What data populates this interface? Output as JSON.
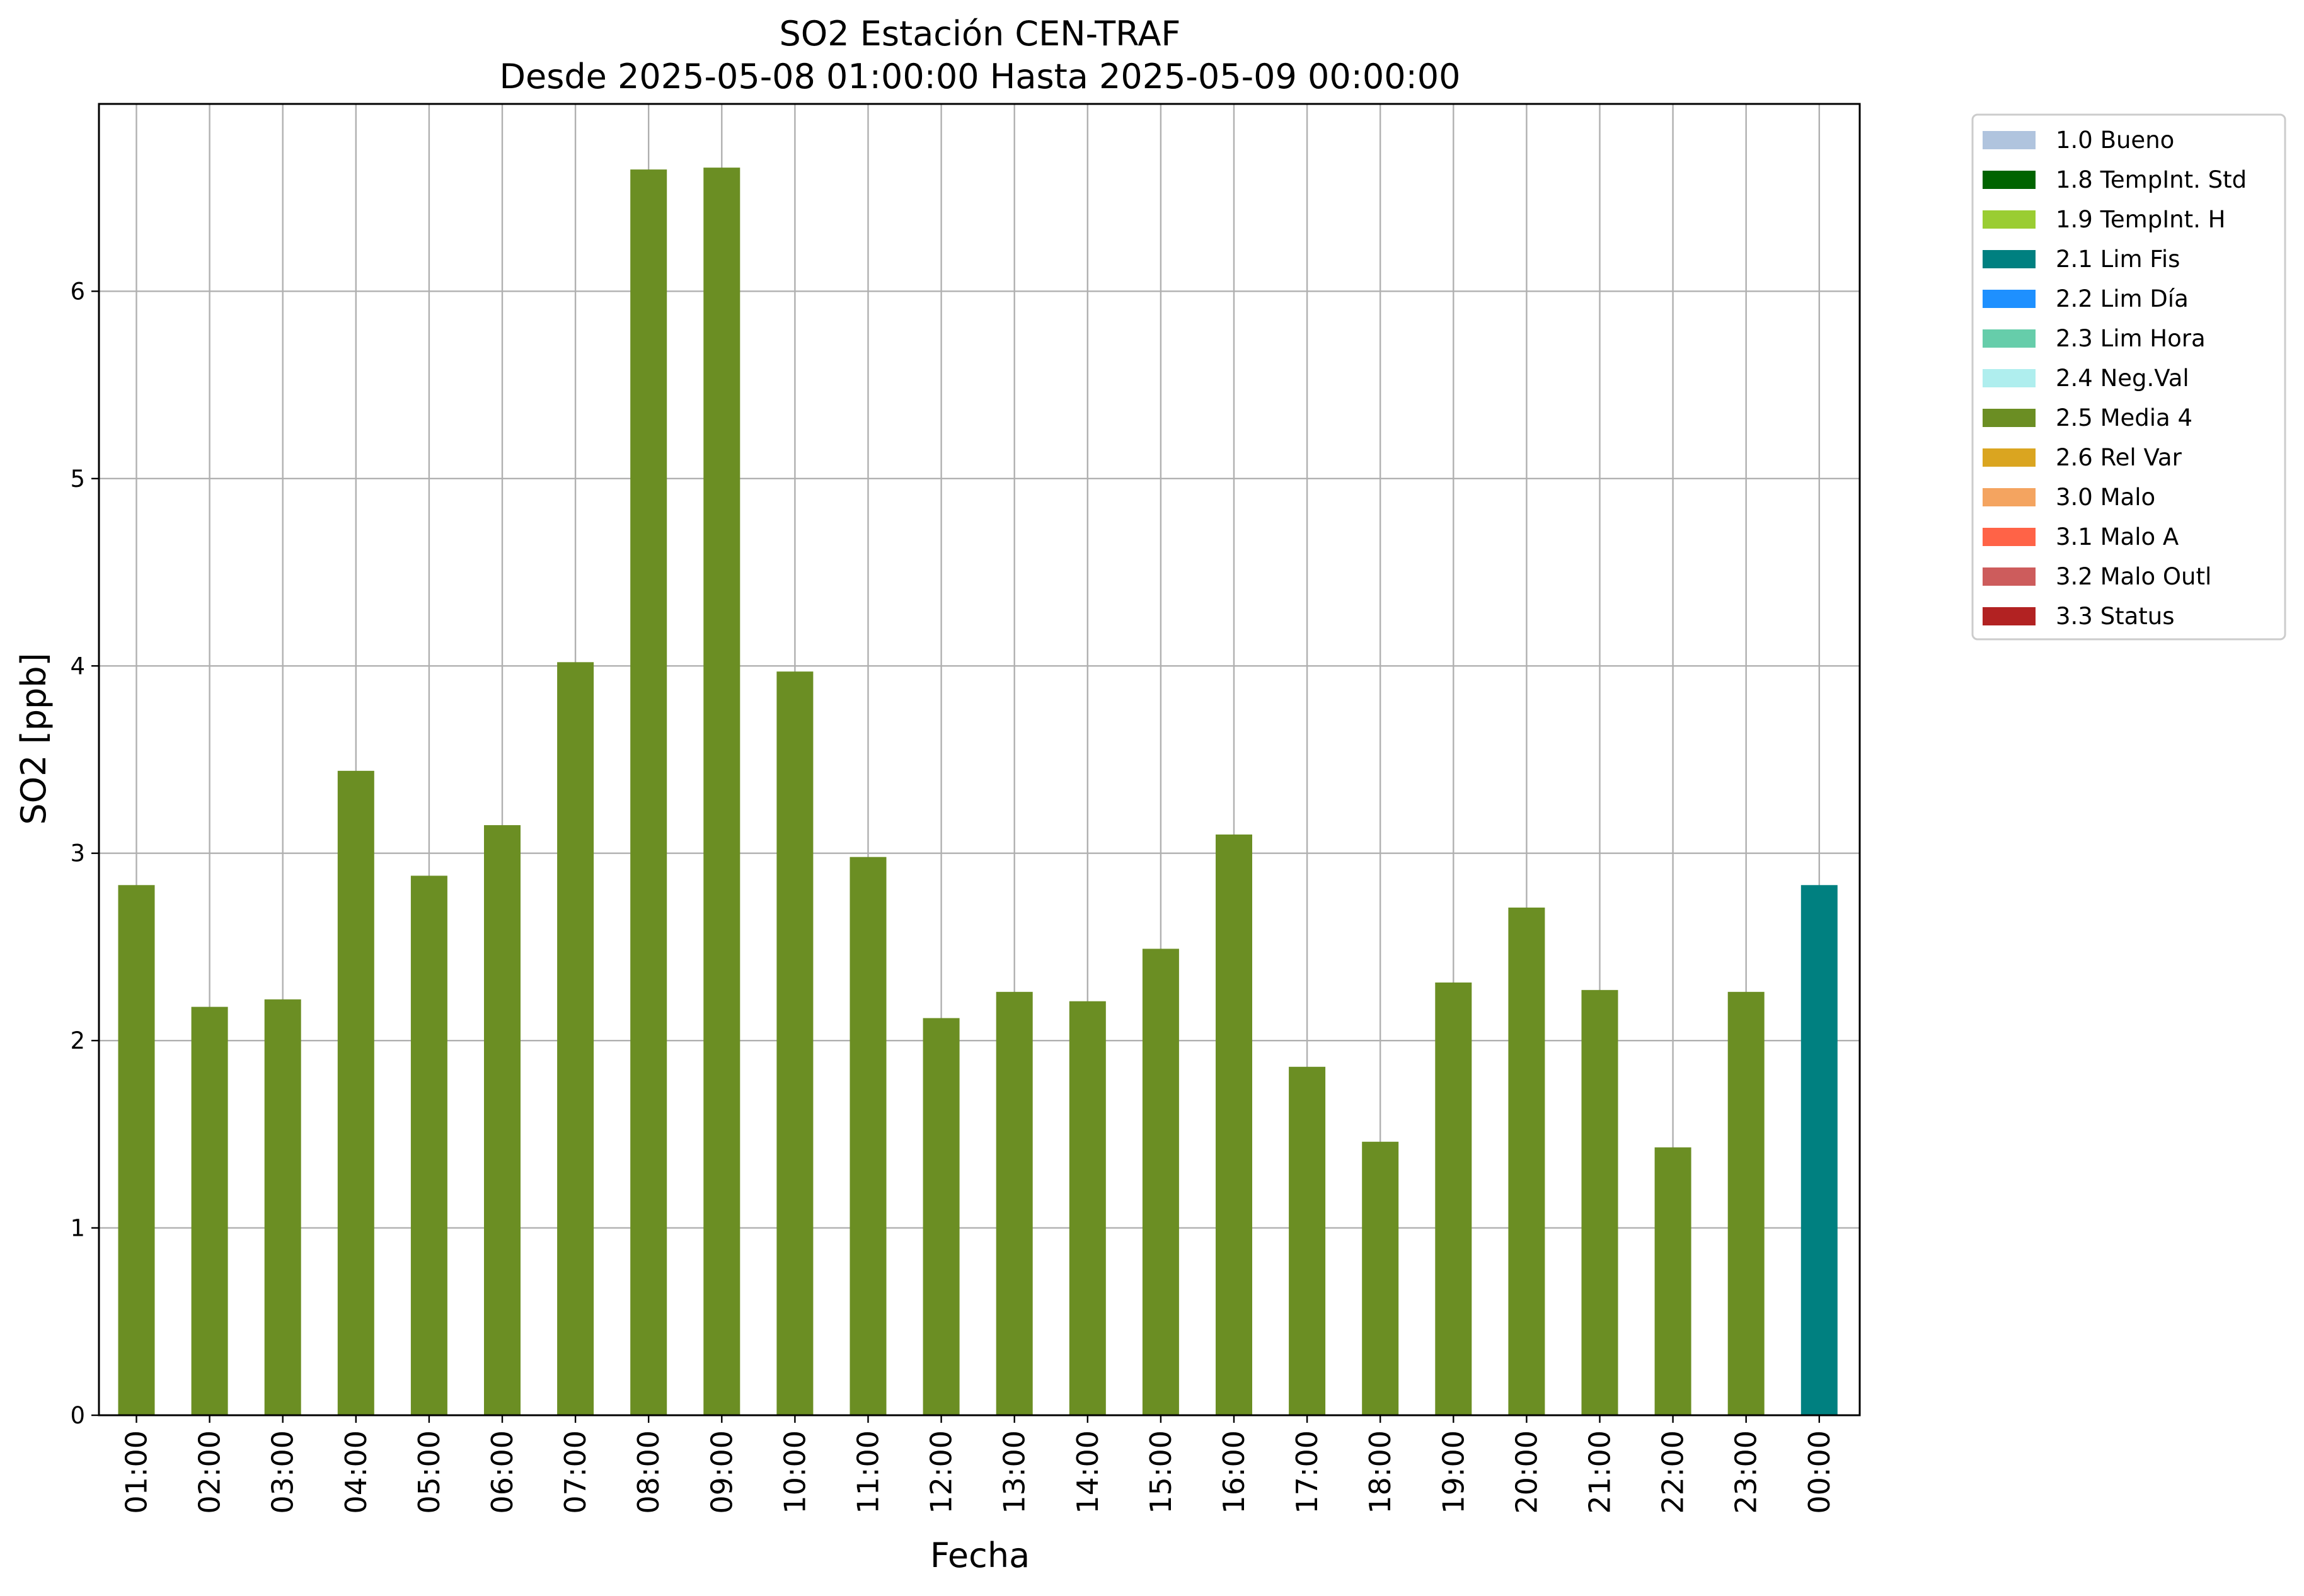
{
  "chart_data": {
    "type": "bar",
    "title": "SO2 Estación CEN-TRAF",
    "subtitle": "Desde 2025-05-08 01:00:00 Hasta 2025-05-09 00:00:00",
    "xlabel": "Fecha",
    "ylabel": "SO2 [ppb]",
    "ylim": [
      0,
      7
    ],
    "yticks": [
      0,
      1,
      2,
      3,
      4,
      5,
      6
    ],
    "grid": true,
    "legend_position": "outside-right",
    "categories": [
      "01:00",
      "02:00",
      "03:00",
      "04:00",
      "05:00",
      "06:00",
      "07:00",
      "08:00",
      "09:00",
      "10:00",
      "11:00",
      "12:00",
      "13:00",
      "14:00",
      "15:00",
      "16:00",
      "17:00",
      "18:00",
      "19:00",
      "20:00",
      "21:00",
      "22:00",
      "23:00",
      "00:00"
    ],
    "values": [
      2.83,
      2.18,
      2.22,
      3.44,
      2.88,
      3.15,
      4.02,
      6.65,
      6.66,
      3.97,
      2.98,
      2.12,
      2.26,
      2.21,
      2.49,
      3.1,
      1.86,
      1.46,
      2.31,
      2.71,
      2.27,
      1.43,
      2.26,
      2.83
    ],
    "flags": [
      "2.5 Media 4",
      "2.5 Media 4",
      "2.5 Media 4",
      "2.5 Media 4",
      "2.5 Media 4",
      "2.5 Media 4",
      "2.5 Media 4",
      "2.5 Media 4",
      "2.5 Media 4",
      "2.5 Media 4",
      "2.5 Media 4",
      "2.5 Media 4",
      "2.5 Media 4",
      "2.5 Media 4",
      "2.5 Media 4",
      "2.5 Media 4",
      "2.5 Media 4",
      "2.5 Media 4",
      "2.5 Media 4",
      "2.5 Media 4",
      "2.5 Media 4",
      "2.5 Media 4",
      "2.5 Media 4",
      "2.1 Lim Fis"
    ],
    "legend": [
      {
        "label": "1.0 Bueno",
        "color": "#b0c4de"
      },
      {
        "label": "1.8 TempInt. Std",
        "color": "#006400"
      },
      {
        "label": "1.9 TempInt. H",
        "color": "#9acd32"
      },
      {
        "label": "2.1 Lim Fis",
        "color": "#008080"
      },
      {
        "label": "2.2 Lim Día",
        "color": "#1e90ff"
      },
      {
        "label": "2.3 Lim Hora",
        "color": "#66cdaa"
      },
      {
        "label": "2.4 Neg.Val",
        "color": "#afeeee"
      },
      {
        "label": "2.5 Media 4",
        "color": "#6b8e23"
      },
      {
        "label": "2.6 Rel Var",
        "color": "#daa520"
      },
      {
        "label": "3.0 Malo",
        "color": "#f4a460"
      },
      {
        "label": "3.1 Malo A",
        "color": "#ff6347"
      },
      {
        "label": "3.2 Malo Outl",
        "color": "#cd5c5c"
      },
      {
        "label": "3.3 Status",
        "color": "#b22222"
      }
    ]
  }
}
